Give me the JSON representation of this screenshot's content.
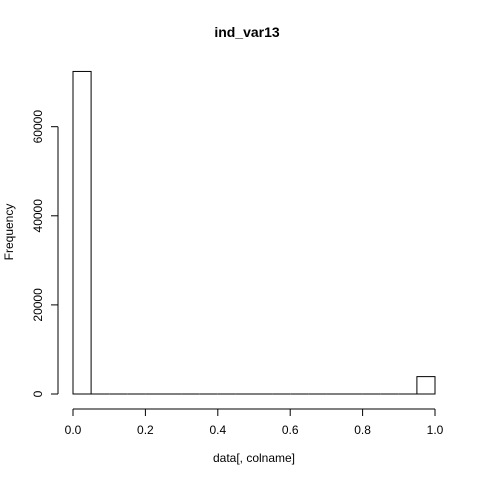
{
  "chart_data": {
    "type": "bar",
    "title": "ind_var13",
    "xlabel": "data[, colname]",
    "ylabel": "Frequency",
    "x_range": [
      0,
      1
    ],
    "ylim": [
      0,
      72500
    ],
    "bin_width": 0.05,
    "bins": [
      {
        "start": 0.0,
        "end": 0.05,
        "count": 72400
      },
      {
        "start": 0.05,
        "end": 0.1,
        "count": 0
      },
      {
        "start": 0.1,
        "end": 0.15,
        "count": 0
      },
      {
        "start": 0.15,
        "end": 0.2,
        "count": 0
      },
      {
        "start": 0.2,
        "end": 0.25,
        "count": 0
      },
      {
        "start": 0.25,
        "end": 0.3,
        "count": 0
      },
      {
        "start": 0.3,
        "end": 0.35,
        "count": 0
      },
      {
        "start": 0.35,
        "end": 0.4,
        "count": 0
      },
      {
        "start": 0.4,
        "end": 0.45,
        "count": 0
      },
      {
        "start": 0.45,
        "end": 0.5,
        "count": 0
      },
      {
        "start": 0.5,
        "end": 0.55,
        "count": 0
      },
      {
        "start": 0.55,
        "end": 0.6,
        "count": 0
      },
      {
        "start": 0.6,
        "end": 0.65,
        "count": 0
      },
      {
        "start": 0.65,
        "end": 0.7,
        "count": 0
      },
      {
        "start": 0.7,
        "end": 0.75,
        "count": 0
      },
      {
        "start": 0.75,
        "end": 0.8,
        "count": 0
      },
      {
        "start": 0.8,
        "end": 0.85,
        "count": 0
      },
      {
        "start": 0.85,
        "end": 0.9,
        "count": 0
      },
      {
        "start": 0.9,
        "end": 0.95,
        "count": 0
      },
      {
        "start": 0.95,
        "end": 1.0,
        "count": 3900
      }
    ],
    "x_ticks": [
      {
        "value": 0.0,
        "label": "0.0"
      },
      {
        "value": 0.2,
        "label": "0.2"
      },
      {
        "value": 0.4,
        "label": "0.4"
      },
      {
        "value": 0.6,
        "label": "0.6"
      },
      {
        "value": 0.8,
        "label": "0.8"
      },
      {
        "value": 1.0,
        "label": "1.0"
      }
    ],
    "y_ticks": [
      {
        "value": 0,
        "label": "0"
      },
      {
        "value": 20000,
        "label": "20000"
      },
      {
        "value": 40000,
        "label": "40000"
      },
      {
        "value": 60000,
        "label": "60000"
      }
    ],
    "grid": false,
    "colors": {
      "bar_fill": "#ffffff",
      "bar_stroke": "#000000",
      "axis": "#000000",
      "text": "#000000"
    }
  }
}
